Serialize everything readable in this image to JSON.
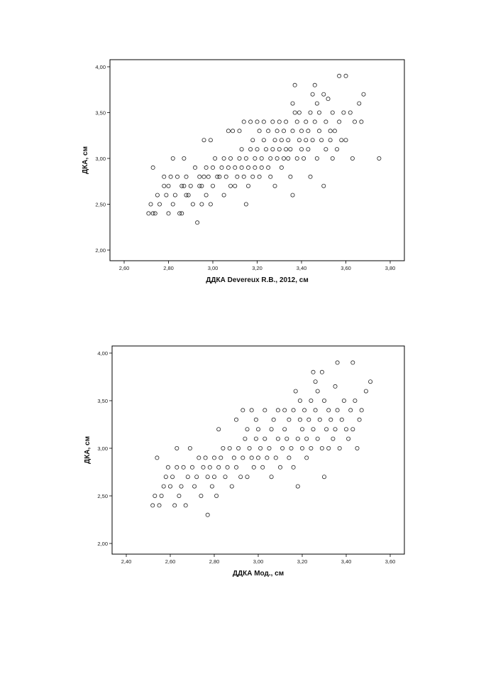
{
  "chart_data": [
    {
      "type": "scatter",
      "title": "",
      "xlabel": "ДДКА Devereux R.B., 2012, см",
      "ylabel": "ДКА, см",
      "xlim": [
        2.6,
        3.8
      ],
      "ylim": [
        2.0,
        4.0
      ],
      "xticks": [
        "2,60",
        "2,80",
        "3,00",
        "3,20",
        "3,40",
        "3,60",
        "3,80"
      ],
      "yticks": [
        "2,00",
        "2,50",
        "3,00",
        "3,50",
        "4,00"
      ],
      "grid": false,
      "legend": "none",
      "points": [
        [
          2.71,
          2.4
        ],
        [
          2.72,
          2.5
        ],
        [
          2.73,
          2.4
        ],
        [
          2.73,
          2.9
        ],
        [
          2.74,
          2.4
        ],
        [
          2.75,
          2.6
        ],
        [
          2.76,
          2.5
        ],
        [
          2.78,
          2.7
        ],
        [
          2.78,
          2.8
        ],
        [
          2.79,
          2.6
        ],
        [
          2.8,
          2.4
        ],
        [
          2.8,
          2.7
        ],
        [
          2.81,
          2.8
        ],
        [
          2.82,
          3.0
        ],
        [
          2.82,
          2.5
        ],
        [
          2.83,
          2.6
        ],
        [
          2.84,
          2.8
        ],
        [
          2.85,
          2.4
        ],
        [
          2.86,
          2.7
        ],
        [
          2.86,
          2.4
        ],
        [
          2.87,
          3.0
        ],
        [
          2.87,
          2.7
        ],
        [
          2.88,
          2.6
        ],
        [
          2.88,
          2.8
        ],
        [
          2.89,
          2.6
        ],
        [
          2.9,
          2.7
        ],
        [
          2.91,
          2.5
        ],
        [
          2.92,
          2.9
        ],
        [
          2.93,
          2.3
        ],
        [
          2.94,
          2.7
        ],
        [
          2.94,
          2.8
        ],
        [
          2.95,
          2.5
        ],
        [
          2.95,
          2.7
        ],
        [
          2.96,
          3.2
        ],
        [
          2.96,
          2.8
        ],
        [
          2.97,
          2.9
        ],
        [
          2.97,
          2.6
        ],
        [
          2.98,
          2.8
        ],
        [
          2.99,
          3.2
        ],
        [
          2.99,
          2.5
        ],
        [
          3.0,
          2.9
        ],
        [
          3.0,
          2.7
        ],
        [
          3.01,
          3.0
        ],
        [
          3.02,
          2.8
        ],
        [
          3.03,
          2.8
        ],
        [
          3.04,
          2.9
        ],
        [
          3.05,
          2.6
        ],
        [
          3.05,
          3.0
        ],
        [
          3.06,
          2.8
        ],
        [
          3.07,
          2.9
        ],
        [
          3.07,
          3.3
        ],
        [
          3.08,
          2.7
        ],
        [
          3.08,
          3.0
        ],
        [
          3.09,
          3.3
        ],
        [
          3.1,
          2.9
        ],
        [
          3.1,
          2.7
        ],
        [
          3.11,
          2.8
        ],
        [
          3.12,
          3.0
        ],
        [
          3.12,
          3.3
        ],
        [
          3.13,
          2.9
        ],
        [
          3.13,
          3.1
        ],
        [
          3.14,
          2.8
        ],
        [
          3.14,
          3.4
        ],
        [
          3.15,
          2.5
        ],
        [
          3.15,
          3.0
        ],
        [
          3.16,
          2.7
        ],
        [
          3.16,
          2.9
        ],
        [
          3.17,
          3.1
        ],
        [
          3.17,
          3.4
        ],
        [
          3.18,
          2.8
        ],
        [
          3.18,
          3.2
        ],
        [
          3.19,
          3.0
        ],
        [
          3.19,
          2.9
        ],
        [
          3.2,
          3.1
        ],
        [
          3.2,
          3.4
        ],
        [
          3.21,
          2.8
        ],
        [
          3.21,
          3.3
        ],
        [
          3.22,
          3.0
        ],
        [
          3.22,
          2.9
        ],
        [
          3.23,
          3.2
        ],
        [
          3.23,
          3.4
        ],
        [
          3.24,
          3.1
        ],
        [
          3.25,
          2.9
        ],
        [
          3.25,
          3.3
        ],
        [
          3.26,
          2.8
        ],
        [
          3.26,
          3.0
        ],
        [
          3.27,
          3.1
        ],
        [
          3.27,
          3.4
        ],
        [
          3.28,
          3.2
        ],
        [
          3.28,
          2.7
        ],
        [
          3.29,
          3.3
        ],
        [
          3.29,
          3.0
        ],
        [
          3.3,
          3.1
        ],
        [
          3.3,
          3.4
        ],
        [
          3.31,
          2.9
        ],
        [
          3.31,
          3.2
        ],
        [
          3.32,
          3.0
        ],
        [
          3.32,
          3.3
        ],
        [
          3.33,
          3.1
        ],
        [
          3.33,
          3.4
        ],
        [
          3.34,
          3.0
        ],
        [
          3.34,
          3.2
        ],
        [
          3.35,
          2.8
        ],
        [
          3.35,
          3.1
        ],
        [
          3.36,
          2.6
        ],
        [
          3.36,
          3.3
        ],
        [
          3.36,
          3.6
        ],
        [
          3.37,
          3.5
        ],
        [
          3.37,
          3.8
        ],
        [
          3.38,
          3.0
        ],
        [
          3.38,
          3.4
        ],
        [
          3.39,
          3.2
        ],
        [
          3.39,
          3.5
        ],
        [
          3.4,
          3.1
        ],
        [
          3.4,
          3.3
        ],
        [
          3.41,
          3.0
        ],
        [
          3.42,
          3.2
        ],
        [
          3.42,
          3.4
        ],
        [
          3.43,
          3.3
        ],
        [
          3.43,
          3.1
        ],
        [
          3.44,
          2.8
        ],
        [
          3.44,
          3.5
        ],
        [
          3.45,
          3.7
        ],
        [
          3.45,
          3.2
        ],
        [
          3.46,
          3.8
        ],
        [
          3.46,
          3.4
        ],
        [
          3.47,
          3.6
        ],
        [
          3.47,
          3.0
        ],
        [
          3.48,
          3.3
        ],
        [
          3.48,
          3.5
        ],
        [
          3.49,
          3.2
        ],
        [
          3.5,
          3.7
        ],
        [
          3.5,
          2.7
        ],
        [
          3.51,
          3.4
        ],
        [
          3.51,
          3.1
        ],
        [
          3.52,
          3.65
        ],
        [
          3.53,
          3.3
        ],
        [
          3.53,
          3.2
        ],
        [
          3.54,
          3.5
        ],
        [
          3.54,
          3.0
        ],
        [
          3.55,
          3.3
        ],
        [
          3.56,
          3.1
        ],
        [
          3.57,
          3.9
        ],
        [
          3.57,
          3.4
        ],
        [
          3.58,
          3.2
        ],
        [
          3.59,
          3.5
        ],
        [
          3.6,
          3.9
        ],
        [
          3.6,
          3.2
        ],
        [
          3.62,
          3.5
        ],
        [
          3.63,
          3.0
        ],
        [
          3.64,
          3.4
        ],
        [
          3.66,
          3.6
        ],
        [
          3.67,
          3.4
        ],
        [
          3.68,
          3.7
        ],
        [
          3.75,
          3.0
        ]
      ]
    },
    {
      "type": "scatter",
      "title": "",
      "xlabel": "ДДКА Мод., см",
      "ylabel": "ДКА, см",
      "xlim": [
        2.4,
        3.6
      ],
      "ylim": [
        2.0,
        4.0
      ],
      "xticks": [
        "2,40",
        "2,60",
        "2,80",
        "3,00",
        "3,20",
        "3,40",
        "3,60"
      ],
      "yticks": [
        "2,00",
        "2,50",
        "3,00",
        "3,50",
        "4,00"
      ],
      "grid": false,
      "legend": "none",
      "points": [
        [
          2.52,
          2.4
        ],
        [
          2.53,
          2.5
        ],
        [
          2.54,
          2.9
        ],
        [
          2.55,
          2.4
        ],
        [
          2.56,
          2.5
        ],
        [
          2.57,
          2.6
        ],
        [
          2.58,
          2.7
        ],
        [
          2.59,
          2.8
        ],
        [
          2.6,
          2.6
        ],
        [
          2.61,
          2.7
        ],
        [
          2.62,
          2.4
        ],
        [
          2.63,
          2.8
        ],
        [
          2.63,
          3.0
        ],
        [
          2.64,
          2.5
        ],
        [
          2.65,
          2.6
        ],
        [
          2.66,
          2.8
        ],
        [
          2.67,
          2.4
        ],
        [
          2.68,
          2.7
        ],
        [
          2.69,
          3.0
        ],
        [
          2.7,
          2.8
        ],
        [
          2.71,
          2.6
        ],
        [
          2.72,
          2.7
        ],
        [
          2.73,
          2.9
        ],
        [
          2.74,
          2.5
        ],
        [
          2.75,
          2.8
        ],
        [
          2.76,
          2.9
        ],
        [
          2.77,
          2.3
        ],
        [
          2.77,
          2.7
        ],
        [
          2.78,
          2.8
        ],
        [
          2.79,
          2.6
        ],
        [
          2.8,
          2.9
        ],
        [
          2.8,
          2.7
        ],
        [
          2.81,
          2.5
        ],
        [
          2.82,
          3.2
        ],
        [
          2.82,
          2.8
        ],
        [
          2.83,
          2.9
        ],
        [
          2.84,
          3.0
        ],
        [
          2.85,
          2.7
        ],
        [
          2.86,
          2.8
        ],
        [
          2.87,
          3.0
        ],
        [
          2.88,
          2.6
        ],
        [
          2.89,
          2.9
        ],
        [
          2.9,
          3.3
        ],
        [
          2.9,
          2.8
        ],
        [
          2.91,
          3.0
        ],
        [
          2.92,
          2.7
        ],
        [
          2.93,
          2.9
        ],
        [
          2.93,
          3.4
        ],
        [
          2.94,
          3.1
        ],
        [
          2.95,
          2.7
        ],
        [
          2.95,
          3.2
        ],
        [
          2.96,
          3.0
        ],
        [
          2.97,
          3.4
        ],
        [
          2.97,
          2.9
        ],
        [
          2.98,
          2.8
        ],
        [
          2.99,
          3.1
        ],
        [
          2.99,
          3.3
        ],
        [
          3.0,
          2.9
        ],
        [
          3.0,
          3.2
        ],
        [
          3.01,
          3.0
        ],
        [
          3.02,
          2.8
        ],
        [
          3.03,
          3.4
        ],
        [
          3.03,
          3.1
        ],
        [
          3.04,
          2.9
        ],
        [
          3.05,
          3.0
        ],
        [
          3.06,
          3.2
        ],
        [
          3.06,
          2.7
        ],
        [
          3.07,
          3.3
        ],
        [
          3.08,
          2.9
        ],
        [
          3.09,
          3.1
        ],
        [
          3.09,
          3.4
        ],
        [
          3.1,
          2.8
        ],
        [
          3.11,
          3.0
        ],
        [
          3.12,
          3.2
        ],
        [
          3.12,
          3.4
        ],
        [
          3.13,
          3.1
        ],
        [
          3.14,
          2.9
        ],
        [
          3.14,
          3.3
        ],
        [
          3.15,
          3.0
        ],
        [
          3.16,
          3.4
        ],
        [
          3.16,
          2.8
        ],
        [
          3.17,
          3.6
        ],
        [
          3.18,
          3.1
        ],
        [
          3.18,
          2.6
        ],
        [
          3.19,
          3.3
        ],
        [
          3.19,
          3.5
        ],
        [
          3.2,
          3.2
        ],
        [
          3.2,
          3.0
        ],
        [
          3.21,
          3.4
        ],
        [
          3.22,
          3.1
        ],
        [
          3.22,
          2.9
        ],
        [
          3.23,
          3.3
        ],
        [
          3.24,
          3.5
        ],
        [
          3.24,
          3.0
        ],
        [
          3.25,
          3.8
        ],
        [
          3.25,
          3.2
        ],
        [
          3.26,
          3.7
        ],
        [
          3.26,
          3.4
        ],
        [
          3.27,
          3.6
        ],
        [
          3.27,
          3.1
        ],
        [
          3.28,
          3.3
        ],
        [
          3.29,
          3.0
        ],
        [
          3.29,
          3.8
        ],
        [
          3.3,
          3.5
        ],
        [
          3.3,
          2.7
        ],
        [
          3.31,
          3.2
        ],
        [
          3.32,
          3.4
        ],
        [
          3.32,
          3.0
        ],
        [
          3.33,
          3.3
        ],
        [
          3.34,
          3.1
        ],
        [
          3.35,
          3.65
        ],
        [
          3.35,
          3.2
        ],
        [
          3.36,
          3.9
        ],
        [
          3.36,
          3.4
        ],
        [
          3.37,
          3.0
        ],
        [
          3.38,
          3.3
        ],
        [
          3.39,
          3.5
        ],
        [
          3.4,
          3.2
        ],
        [
          3.41,
          3.1
        ],
        [
          3.42,
          3.4
        ],
        [
          3.43,
          3.9
        ],
        [
          3.43,
          3.2
        ],
        [
          3.44,
          3.5
        ],
        [
          3.45,
          3.0
        ],
        [
          3.46,
          3.3
        ],
        [
          3.47,
          3.4
        ],
        [
          3.49,
          3.6
        ],
        [
          3.51,
          3.7
        ]
      ]
    }
  ]
}
